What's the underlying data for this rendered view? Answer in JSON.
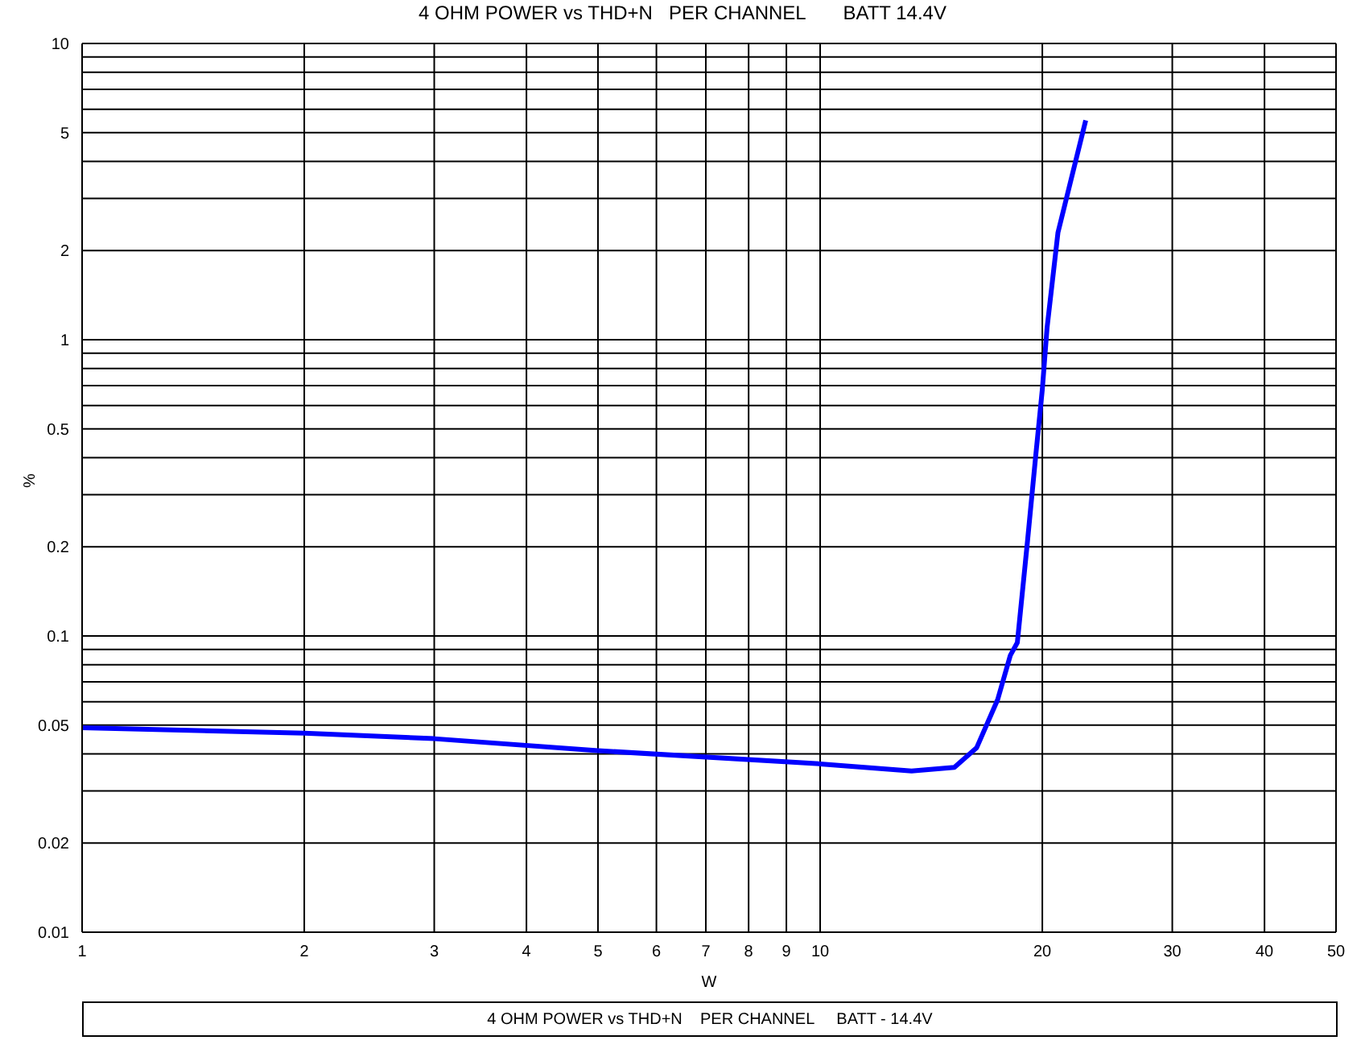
{
  "chart_data": {
    "type": "line",
    "title": "4 OHM POWER vs THD+N   PER CHANNEL       BATT 14.4V",
    "xlabel": "W",
    "ylabel": "%",
    "log": "xy",
    "grid": true,
    "marker": "none",
    "line_style": "solid",
    "annotations": [
      "4 OHM POWER vs THD+N    PER CHANNEL     BATT - 14.4V"
    ],
    "xlim": [
      1,
      50
    ],
    "xticks": [
      1,
      2,
      3,
      4,
      5,
      6,
      7,
      8,
      9,
      10,
      20,
      30,
      40,
      50
    ],
    "ylim": [
      0.01,
      10
    ],
    "yticks": [
      0.01,
      0.02,
      {
        "value": 0.03,
        "label": null
      },
      {
        "value": 0.04,
        "label": null
      },
      0.05,
      {
        "value": 0.06,
        "label": null
      },
      {
        "value": 0.07,
        "label": null
      },
      {
        "value": 0.08,
        "label": null
      },
      {
        "value": 0.09,
        "label": null
      },
      0.1,
      0.2,
      {
        "value": 0.3,
        "label": null
      },
      {
        "value": 0.4,
        "label": null
      },
      0.5,
      {
        "value": 0.6,
        "label": null
      },
      {
        "value": 0.7,
        "label": null
      },
      {
        "value": 0.8,
        "label": null
      },
      {
        "value": 0.9,
        "label": null
      },
      1,
      2,
      {
        "value": 3,
        "label": null
      },
      {
        "value": 4,
        "label": null
      },
      5,
      {
        "value": 6,
        "label": null
      },
      {
        "value": 7,
        "label": null
      },
      {
        "value": 8,
        "label": null
      },
      {
        "value": 9,
        "label": null
      },
      10
    ],
    "series": [
      {
        "color": "#0000ff",
        "x": [
          1,
          2,
          3,
          5,
          10,
          13.3,
          15.2,
          16.3,
          17.4,
          18.1,
          18.5,
          19.1,
          19.6,
          20,
          20.3,
          21,
          22.9
        ],
        "values": [
          0.049,
          0.047,
          0.045,
          0.041,
          0.037,
          0.035,
          0.036,
          0.042,
          0.061,
          0.086,
          0.095,
          0.21,
          0.41,
          0.68,
          1.1,
          2.3,
          5.5
        ]
      }
    ]
  }
}
